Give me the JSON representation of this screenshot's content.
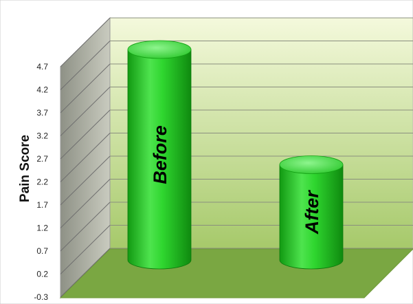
{
  "chart_data": {
    "type": "bar",
    "title": "",
    "xlabel": "",
    "ylabel": "Pain Score",
    "categories": [
      "Before",
      "After"
    ],
    "values": [
      4.7,
      2.2
    ],
    "yticks": [
      "4.7",
      "4.2",
      "3.7",
      "3.2",
      "2.7",
      "2.2",
      "1.7",
      "1.2",
      "0.7",
      "0.2",
      "-0.3"
    ],
    "ylim": [
      -0.3,
      4.7
    ],
    "grid": true,
    "legend": "none",
    "style": "3d-cylinder",
    "colors": {
      "bar": "#2fd62f",
      "bar_dark": "#129a12",
      "bar_light": "#7af07a",
      "back_wall_top": "#f4f9dc",
      "back_wall_bottom": "#a6c96a",
      "side_wall": "#a6a99c",
      "floor": "#7aa742"
    }
  }
}
